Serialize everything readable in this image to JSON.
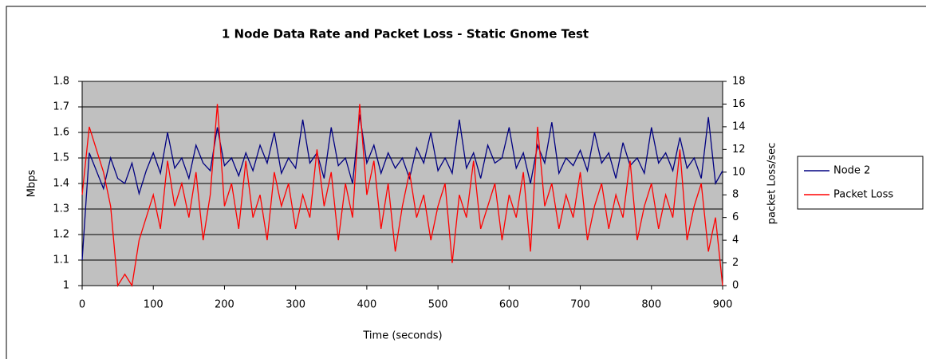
{
  "chart_data": {
    "type": "line",
    "title": "1 Node Data Rate and Packet Loss - Static Gnome Test",
    "x_label": "Time (seconds)",
    "y_label": "Mbps",
    "y2_label": "packet Loss/sec",
    "x": [
      0,
      10,
      20,
      30,
      40,
      50,
      60,
      70,
      80,
      90,
      100,
      110,
      120,
      130,
      140,
      150,
      160,
      170,
      180,
      190,
      200,
      210,
      220,
      230,
      240,
      250,
      260,
      270,
      280,
      290,
      300,
      310,
      320,
      330,
      340,
      350,
      360,
      370,
      380,
      390,
      400,
      410,
      420,
      430,
      440,
      450,
      460,
      470,
      480,
      490,
      500,
      510,
      520,
      530,
      540,
      550,
      560,
      570,
      580,
      590,
      600,
      610,
      620,
      630,
      640,
      650,
      660,
      670,
      680,
      690,
      700,
      710,
      720,
      730,
      740,
      750,
      760,
      770,
      780,
      790,
      800,
      810,
      820,
      830,
      840,
      850,
      860,
      870,
      880,
      890,
      900
    ],
    "series": [
      {
        "name": "Node 2",
        "color": "#000080",
        "axis": "y",
        "values": [
          1.1,
          1.52,
          1.45,
          1.38,
          1.5,
          1.42,
          1.4,
          1.48,
          1.36,
          1.45,
          1.52,
          1.44,
          1.6,
          1.46,
          1.5,
          1.42,
          1.55,
          1.48,
          1.45,
          1.62,
          1.47,
          1.5,
          1.43,
          1.52,
          1.45,
          1.55,
          1.48,
          1.6,
          1.44,
          1.5,
          1.46,
          1.65,
          1.48,
          1.52,
          1.42,
          1.62,
          1.47,
          1.5,
          1.4,
          1.67,
          1.48,
          1.55,
          1.44,
          1.52,
          1.46,
          1.5,
          1.42,
          1.54,
          1.48,
          1.6,
          1.45,
          1.5,
          1.44,
          1.65,
          1.46,
          1.52,
          1.42,
          1.55,
          1.48,
          1.5,
          1.62,
          1.46,
          1.52,
          1.4,
          1.55,
          1.48,
          1.64,
          1.44,
          1.5,
          1.47,
          1.53,
          1.45,
          1.6,
          1.48,
          1.52,
          1.42,
          1.56,
          1.47,
          1.5,
          1.44,
          1.62,
          1.48,
          1.52,
          1.45,
          1.58,
          1.46,
          1.5,
          1.42,
          1.66,
          1.4,
          1.45
        ]
      },
      {
        "name": "Packet Loss",
        "color": "#ff0000",
        "axis": "y2",
        "values": [
          8,
          14,
          12,
          10,
          7,
          0,
          1,
          0,
          4,
          6,
          8,
          5,
          11,
          7,
          9,
          6,
          10,
          4,
          8,
          16,
          7,
          9,
          5,
          11,
          6,
          8,
          4,
          10,
          7,
          9,
          5,
          8,
          6,
          12,
          7,
          10,
          4,
          9,
          6,
          16,
          8,
          11,
          5,
          9,
          3,
          7,
          10,
          6,
          8,
          4,
          7,
          9,
          2,
          8,
          6,
          11,
          5,
          7,
          9,
          4,
          8,
          6,
          10,
          3,
          14,
          7,
          9,
          5,
          8,
          6,
          10,
          4,
          7,
          9,
          5,
          8,
          6,
          11,
          4,
          7,
          9,
          5,
          8,
          6,
          12,
          4,
          7,
          9,
          3,
          6,
          0
        ]
      }
    ],
    "xlim": [
      0,
      900
    ],
    "xticks": [
      0,
      100,
      200,
      300,
      400,
      500,
      600,
      700,
      800,
      900
    ],
    "ylim": [
      1,
      1.8
    ],
    "yticks": [
      1,
      1.1,
      1.2,
      1.3,
      1.4,
      1.5,
      1.6,
      1.7,
      1.8
    ],
    "y2lim": [
      0,
      18
    ],
    "y2ticks": [
      0,
      2,
      4,
      6,
      8,
      10,
      12,
      14,
      16,
      18
    ],
    "grid": true,
    "legend": "right"
  }
}
